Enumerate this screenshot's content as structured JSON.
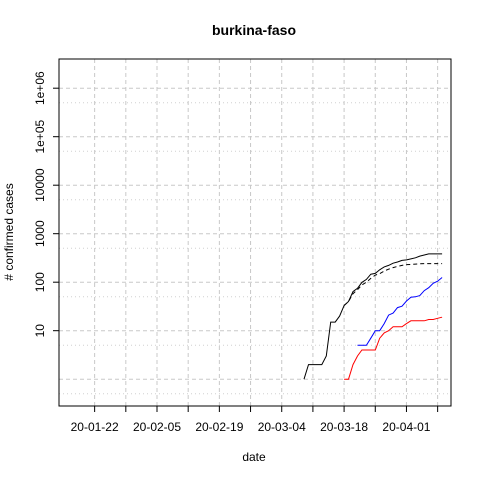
{
  "chart_data": {
    "type": "line",
    "title": "burkina-faso",
    "xlabel": "date",
    "ylabel": "# confirmed cases",
    "y_scale": "log",
    "xlim": [
      "2020-01-14",
      "2020-04-11"
    ],
    "ylim": [
      0.28,
      4000000
    ],
    "grid": true,
    "x_ticks": [
      "2020-01-22",
      "2020-01-29",
      "2020-02-05",
      "2020-02-12",
      "2020-02-19",
      "2020-02-26",
      "2020-03-04",
      "2020-03-11",
      "2020-03-18",
      "2020-03-25",
      "2020-04-01",
      "2020-04-08"
    ],
    "x_tick_labels": [
      {
        "date": "2020-01-22",
        "label": "20-01-22"
      },
      {
        "date": "2020-02-05",
        "label": "20-02-05"
      },
      {
        "date": "2020-02-19",
        "label": "20-02-19"
      },
      {
        "date": "2020-03-04",
        "label": "20-03-04"
      },
      {
        "date": "2020-03-18",
        "label": "20-03-18"
      },
      {
        "date": "2020-04-01",
        "label": "20-04-01"
      }
    ],
    "y_ticks": [
      10,
      100,
      1000,
      10000,
      100000,
      1000000
    ],
    "y_tick_labels": [
      "10",
      "100",
      "1000",
      "10000",
      "1e+05",
      "1e+06"
    ],
    "series": [
      {
        "color": "#000000",
        "dash": "solid",
        "x": [
          "2020-03-09",
          "2020-03-10",
          "2020-03-11",
          "2020-03-12",
          "2020-03-13",
          "2020-03-14",
          "2020-03-15",
          "2020-03-16",
          "2020-03-17",
          "2020-03-18",
          "2020-03-19",
          "2020-03-20",
          "2020-03-21",
          "2020-03-22",
          "2020-03-23",
          "2020-03-24",
          "2020-03-25",
          "2020-03-26",
          "2020-03-27",
          "2020-03-28",
          "2020-03-29",
          "2020-03-30",
          "2020-03-31",
          "2020-04-01",
          "2020-04-02",
          "2020-04-03",
          "2020-04-04",
          "2020-04-05",
          "2020-04-06",
          "2020-04-07",
          "2020-04-08",
          "2020-04-09"
        ],
        "y": [
          1,
          2,
          2,
          2,
          2,
          3,
          15,
          15,
          20,
          33,
          40,
          64,
          75,
          99,
          114,
          146,
          152,
          180,
          207,
          222,
          246,
          261,
          282,
          288,
          302,
          318,
          345,
          364,
          384,
          384,
          384,
          384
        ]
      },
      {
        "color": "#000000",
        "dash": "dashed",
        "x": [
          "2020-03-18",
          "2020-03-19",
          "2020-03-20",
          "2020-03-21",
          "2020-03-22",
          "2020-03-23",
          "2020-03-24",
          "2020-03-25",
          "2020-03-26",
          "2020-03-27",
          "2020-03-28",
          "2020-03-29",
          "2020-03-30",
          "2020-03-31",
          "2020-04-01",
          "2020-04-02",
          "2020-04-03",
          "2020-04-04",
          "2020-04-05",
          "2020-04-06",
          "2020-04-07",
          "2020-04-08",
          "2020-04-09"
        ],
        "y": [
          33,
          40,
          58,
          70,
          88,
          100,
          120,
          140,
          150,
          170,
          185,
          200,
          212,
          222,
          230,
          232,
          236,
          240,
          242,
          242,
          242,
          242,
          242
        ]
      },
      {
        "color": "#0000ff",
        "dash": "solid",
        "x": [
          "2020-03-21",
          "2020-03-22",
          "2020-03-23",
          "2020-03-24",
          "2020-03-25",
          "2020-03-26",
          "2020-03-27",
          "2020-03-28",
          "2020-03-29",
          "2020-03-30",
          "2020-03-31",
          "2020-04-01",
          "2020-04-02",
          "2020-04-03",
          "2020-04-04",
          "2020-04-05",
          "2020-04-06",
          "2020-04-07",
          "2020-04-08",
          "2020-04-09"
        ],
        "y": [
          5,
          5,
          5,
          7,
          10,
          10,
          14,
          21,
          23,
          30,
          32,
          41,
          49,
          50,
          53,
          67,
          77,
          95,
          105,
          125
        ]
      },
      {
        "color": "#ff0000",
        "dash": "solid",
        "x": [
          "2020-03-18",
          "2020-03-19",
          "2020-03-20",
          "2020-03-21",
          "2020-03-22",
          "2020-03-23",
          "2020-03-24",
          "2020-03-25",
          "2020-03-26",
          "2020-03-27",
          "2020-03-28",
          "2020-03-29",
          "2020-03-30",
          "2020-03-31",
          "2020-04-01",
          "2020-04-02",
          "2020-04-03",
          "2020-04-04",
          "2020-04-05",
          "2020-04-06",
          "2020-04-07",
          "2020-04-08",
          "2020-04-09"
        ],
        "y": [
          1,
          1,
          2,
          3,
          4,
          4,
          4,
          4,
          7,
          9,
          10,
          12,
          12,
          12,
          14,
          16,
          16,
          16,
          16,
          17,
          17,
          18,
          19
        ]
      }
    ]
  }
}
